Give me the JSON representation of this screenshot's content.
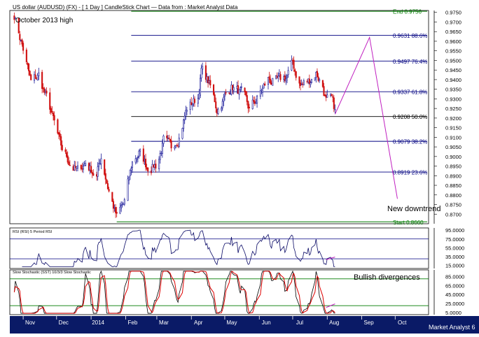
{
  "header": {
    "title": "US dollar (AUDUSD) (FX) - [ 1 Day ] CandleStick Chart — Data from : Market Analyst Data",
    "annotation": "October 2013 high",
    "footer": "Market Analyst 6"
  },
  "colors": {
    "up": "#1a1a99",
    "down": "#d01010",
    "fib": "#000080",
    "green": "#007a00",
    "projection": "#c020c0",
    "rsi": "#0a0a66",
    "stoch_k": "#000000",
    "stoch_d": "#dd0000",
    "date_bar": "#0a1a66"
  },
  "chart_data": [
    {
      "type": "candlestick",
      "name": "price",
      "ylim": [
        0.865,
        0.976
      ],
      "price_ticks": [
        "0.9750",
        "0.9700",
        "0.9650",
        "0.9600",
        "0.9550",
        "0.9500",
        "0.9450",
        "0.9400",
        "0.9350",
        "0.9300",
        "0.9250",
        "0.9200",
        "0.9150",
        "0.9100",
        "0.9050",
        "0.9000",
        "0.8950",
        "0.8900",
        "0.8850",
        "0.8800",
        "0.8750",
        "0.8700"
      ],
      "waypoints": [
        [
          "2013-10-24",
          0.974
        ],
        [
          "2013-11-01",
          0.956
        ],
        [
          "2013-11-08",
          0.938
        ],
        [
          "2013-11-15",
          0.942
        ],
        [
          "2013-11-26",
          0.923
        ],
        [
          "2013-12-05",
          0.904
        ],
        [
          "2013-12-13",
          0.897
        ],
        [
          "2013-12-20",
          0.892
        ],
        [
          "2013-12-27",
          0.897
        ],
        [
          "2014-01-06",
          0.89
        ],
        [
          "2014-01-10",
          0.9
        ],
        [
          "2014-01-16",
          0.885
        ],
        [
          "2014-01-24",
          0.868
        ],
        [
          "2014-01-31",
          0.876
        ],
        [
          "2014-02-07",
          0.897
        ],
        [
          "2014-02-13",
          0.902
        ],
        [
          "2014-02-20",
          0.895
        ],
        [
          "2014-03-01",
          0.896
        ],
        [
          "2014-03-07",
          0.908
        ],
        [
          "2014-03-14",
          0.903
        ],
        [
          "2014-03-21",
          0.912
        ],
        [
          "2014-03-28",
          0.925
        ],
        [
          "2014-04-07",
          0.931
        ],
        [
          "2014-04-10",
          0.945
        ],
        [
          "2014-04-16",
          0.939
        ],
        [
          "2014-04-24",
          0.925
        ],
        [
          "2014-04-30",
          0.93
        ],
        [
          "2014-05-07",
          0.937
        ],
        [
          "2014-05-15",
          0.933
        ],
        [
          "2014-05-23",
          0.924
        ],
        [
          "2014-05-30",
          0.93
        ],
        [
          "2014-06-09",
          0.94
        ],
        [
          "2014-06-18",
          0.938
        ],
        [
          "2014-06-25",
          0.941
        ],
        [
          "2014-07-01",
          0.948
        ],
        [
          "2014-07-08",
          0.937
        ],
        [
          "2014-07-15",
          0.939
        ],
        [
          "2014-07-22",
          0.944
        ],
        [
          "2014-07-28",
          0.937
        ],
        [
          "2014-07-31",
          0.929
        ],
        [
          "2014-08-05",
          0.928
        ],
        [
          "2014-08-08",
          0.923
        ]
      ],
      "fibonacci": [
        {
          "label": "End 0.9756",
          "value": 0.9756,
          "color": "green"
        },
        {
          "label": "0.9631 88.6%",
          "value": 0.9631,
          "color": "fib"
        },
        {
          "label": "0.9497 76.4%",
          "value": 0.9497,
          "color": "fib"
        },
        {
          "label": "0.9337 61.8%",
          "value": 0.9337,
          "color": "fib"
        },
        {
          "label": "0.9208 50.0%",
          "value": 0.9208,
          "color": "black"
        },
        {
          "label": "0.9079 38.2%",
          "value": 0.9079,
          "color": "fib"
        },
        {
          "label": "0.8919 23.6%",
          "value": 0.8919,
          "color": "fib"
        },
        {
          "label": "Start 0.8660",
          "value": 0.866,
          "color": "green"
        }
      ],
      "projection": [
        [
          "2014-08-08",
          0.922
        ],
        [
          "2014-09-08",
          0.962
        ],
        [
          "2014-10-03",
          0.878
        ]
      ],
      "projection_label": "New downtrend"
    },
    {
      "type": "line",
      "name": "rsi",
      "title": "RSI (RSI) 5 Period RSI",
      "ylim": [
        8,
        100
      ],
      "levels": [
        75,
        30
      ],
      "ticks": [
        "95.0000",
        "75.0000",
        "55.0000",
        "35.0000",
        "15.0000"
      ],
      "trendline": [
        [
          "2014-07-31",
          28
        ],
        [
          "2014-08-08",
          34
        ]
      ]
    },
    {
      "type": "line",
      "name": "stochastic",
      "title": "Slow Stochastic (SST) 10/3/3 Slow Stochastic",
      "ylim": [
        0,
        100
      ],
      "levels": [
        80,
        20
      ],
      "ticks": [
        "85.0000",
        "65.0000",
        "45.0000",
        "25.0000",
        "5.0000"
      ],
      "trendline": [
        [
          "2014-07-31",
          16
        ],
        [
          "2014-08-08",
          24
        ]
      ],
      "annotation": "Bullish divergences"
    },
    {
      "type": "axis",
      "months": [
        {
          "label": "Nov",
          "date": "2013-11-01"
        },
        {
          "label": "Dec",
          "date": "2013-12-01"
        },
        {
          "label": "2014",
          "date": "2014-01-01"
        },
        {
          "label": "Feb",
          "date": "2014-02-01"
        },
        {
          "label": "Mar",
          "date": "2014-03-01"
        },
        {
          "label": "Apr",
          "date": "2014-04-01"
        },
        {
          "label": "May",
          "date": "2014-05-01"
        },
        {
          "label": "Jun",
          "date": "2014-06-01"
        },
        {
          "label": "Jul",
          "date": "2014-07-01"
        },
        {
          "label": "Aug",
          "date": "2014-08-01"
        },
        {
          "label": "Sep",
          "date": "2014-09-01"
        },
        {
          "label": "Oct",
          "date": "2014-10-01"
        }
      ],
      "x_range": [
        "2013-10-20",
        "2014-10-31"
      ]
    }
  ]
}
